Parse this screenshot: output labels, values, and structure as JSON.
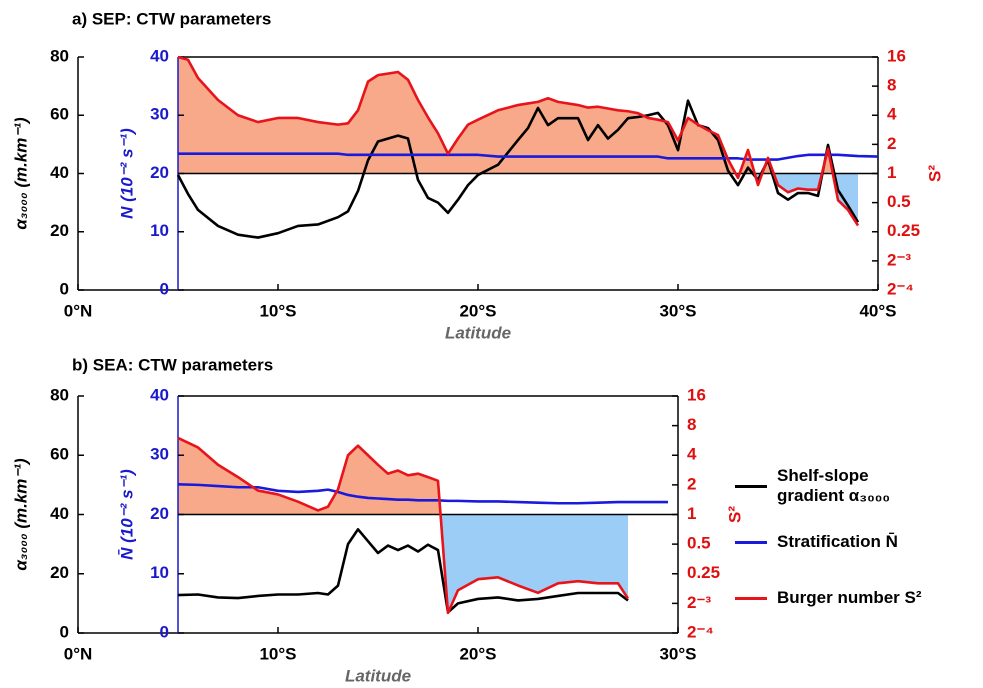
{
  "chart_data": [
    {
      "type": "line",
      "title": "a) SEP: CTW parameters",
      "xlabel": "Latitude",
      "ylabel": "α₃₀₀₀ (m.km⁻¹)",
      "y3label": "N (10⁻² s⁻¹)",
      "y2label": "S²",
      "xlim": [
        0,
        40
      ],
      "xticks": [
        {
          "value": 0,
          "label": "0°N"
        },
        {
          "value": 10,
          "label": "10°S"
        },
        {
          "value": 20,
          "label": "20°S"
        },
        {
          "value": 30,
          "label": "30°S"
        },
        {
          "value": 40,
          "label": "40°S"
        }
      ],
      "ylim": [
        0,
        80
      ],
      "yticks": [
        0,
        20,
        40,
        60,
        80
      ],
      "ycolor": "#000000",
      "y3lim": [
        0,
        40
      ],
      "y3ticks": [
        0,
        10,
        20,
        30,
        40
      ],
      "y3color": "#1a1acc",
      "y2lim": [
        0.0625,
        16
      ],
      "y2log": true,
      "y2ticks": [
        {
          "value": 0.0625,
          "label": "2⁻⁴"
        },
        {
          "value": 0.125,
          "label": "2⁻³"
        },
        0.25,
        0.5,
        1,
        2,
        4,
        8,
        16
      ],
      "y2color": "#e01010",
      "x": [
        5,
        5.5,
        6,
        7,
        8,
        9,
        10,
        11,
        12,
        13,
        13.5,
        14,
        14.5,
        15,
        16,
        16.5,
        17,
        17.5,
        18,
        18.5,
        19,
        19.5,
        20,
        21,
        22,
        22.5,
        23,
        23.5,
        24,
        25,
        25.5,
        26,
        26.5,
        27,
        27.5,
        28,
        28.5,
        29,
        29.5,
        30,
        30.5,
        31,
        31.5,
        32,
        32.5,
        33,
        33.5,
        34,
        34.5,
        35,
        35.5,
        36,
        36.5,
        37,
        37.5,
        38,
        38.5,
        39,
        40
      ],
      "series": [
        {
          "color": "#000000",
          "axis": "y",
          "values": [
            39.5,
            33,
            27.5,
            22,
            19,
            18,
            19.5,
            22,
            22.5,
            25,
            27,
            34,
            44.5,
            51,
            53,
            52,
            37.8,
            31.6,
            30,
            26.5,
            31,
            36,
            39.5,
            43,
            51.5,
            55.6,
            62.5,
            56.6,
            59,
            59,
            51.5,
            56.6,
            52,
            55,
            59,
            59.4,
            60,
            60.8,
            56.6,
            48,
            65,
            56.6,
            55.6,
            51.5,
            41,
            36,
            42,
            37.8,
            44.6,
            33.3,
            31,
            33.3,
            33.3,
            32.3,
            49.8,
            34.3,
            29,
            23.3,
            null
          ]
        },
        {
          "color": "#1a1add",
          "axis": "y3",
          "values": [
            23.4,
            23.4,
            23.4,
            23.4,
            23.4,
            23.4,
            23.4,
            23.4,
            23.4,
            23.4,
            23.2,
            23.2,
            23.2,
            23.2,
            23.2,
            23.2,
            23.2,
            23.2,
            23.2,
            23.2,
            23.2,
            23.2,
            23.2,
            22.9,
            22.9,
            22.9,
            22.9,
            22.9,
            22.9,
            22.9,
            22.9,
            22.9,
            22.9,
            22.9,
            22.9,
            22.9,
            22.9,
            22.9,
            22.6,
            22.6,
            22.6,
            22.6,
            22.6,
            22.6,
            22.6,
            22.6,
            22.4,
            22.4,
            22.4,
            22.4,
            22.7,
            23.0,
            23.2,
            23.2,
            23.2,
            23.2,
            23.1,
            23.0,
            22.9
          ]
        },
        {
          "color": "#e8141c",
          "axis": "y2",
          "fill": {
            "baseline": 1,
            "above": "#f7a98a",
            "below": "#9ccdf6"
          },
          "values": [
            16,
            15,
            9.7,
            5.75,
            4,
            3.4,
            3.75,
            3.75,
            3.4,
            3.2,
            3.3,
            4.5,
            8.9,
            10.4,
            11.2,
            9.3,
            5.75,
            3.8,
            2.6,
            1.6,
            2.3,
            3.2,
            3.6,
            4.5,
            5.1,
            5.3,
            5.5,
            6,
            5.5,
            5.1,
            4.8,
            4.9,
            4.7,
            4.5,
            4.4,
            4.2,
            3.75,
            3.6,
            3.4,
            2.2,
            3.75,
            3.2,
            2.8,
            2.5,
            1.4,
            0.9,
            1.75,
            0.76,
            1.45,
            0.76,
            0.64,
            0.7,
            0.68,
            0.68,
            1.8,
            0.53,
            0.42,
            0.29,
            null
          ]
        }
      ]
    },
    {
      "type": "line",
      "title": "b) SEA: CTW parameters",
      "xlabel": "Latitude",
      "ylabel": "α₃₀₀₀ (m.km⁻¹)",
      "y3label": "N̄ (10⁻² s⁻¹)",
      "y2label": "S²",
      "xlim": [
        0,
        30
      ],
      "xticks": [
        {
          "value": 0,
          "label": "0°N"
        },
        {
          "value": 10,
          "label": "10°S"
        },
        {
          "value": 20,
          "label": "20°S"
        },
        {
          "value": 30,
          "label": "30°S"
        }
      ],
      "ylim": [
        0,
        80
      ],
      "yticks": [
        0,
        20,
        40,
        60,
        80
      ],
      "ycolor": "#000000",
      "y3lim": [
        0,
        40
      ],
      "y3ticks": [
        0,
        10,
        20,
        30,
        40
      ],
      "y3color": "#1a1acc",
      "y2lim": [
        0.0625,
        16
      ],
      "y2log": true,
      "y2ticks": [
        {
          "value": 0.0625,
          "label": "2⁻⁴"
        },
        {
          "value": 0.125,
          "label": "2⁻³"
        },
        0.25,
        0.5,
        1,
        2,
        4,
        8,
        16
      ],
      "y2color": "#e01010",
      "legend": "right",
      "x": [
        5,
        6,
        7,
        8,
        9,
        10,
        11,
        12,
        12.5,
        13,
        13.5,
        14,
        14.5,
        15,
        15.5,
        16,
        16.5,
        17,
        17.5,
        18,
        18.5,
        19,
        20,
        21,
        22,
        23,
        24,
        25,
        26,
        27,
        27.5,
        28,
        29,
        29.5
      ],
      "series": [
        {
          "name": "Shelf-slope gradient α₃₀₀₀",
          "color": "#000000",
          "axis": "y",
          "values": [
            12.8,
            13,
            12,
            11.8,
            12.5,
            13,
            13,
            13.5,
            13,
            16,
            30,
            35,
            31,
            27,
            29.5,
            28,
            29.5,
            27.5,
            29.8,
            28,
            7,
            10,
            11.5,
            12,
            11,
            11.5,
            12.5,
            13.5,
            13.5,
            13.5,
            11,
            null,
            null,
            null
          ]
        },
        {
          "name": "Stratification N̄",
          "color": "#1a1add",
          "axis": "y3",
          "values": [
            25.1,
            25,
            24.8,
            24.6,
            24.6,
            24,
            23.8,
            24,
            24.2,
            23.8,
            23.3,
            23,
            22.8,
            22.7,
            22.6,
            22.5,
            22.5,
            22.4,
            22.4,
            22.4,
            22.3,
            22.3,
            22.2,
            22.2,
            22.1,
            22,
            21.9,
            21.9,
            22,
            22.1,
            22.1,
            22.1,
            22.1,
            22.1
          ]
        },
        {
          "name": "Burger number S²",
          "color": "#e8141c",
          "axis": "y2",
          "fill": {
            "baseline": 1,
            "above": "#f7a98a",
            "below": "#9ccdf6"
          },
          "values": [
            6,
            4.8,
            3.2,
            2.4,
            1.75,
            1.6,
            1.35,
            1.1,
            1.2,
            1.8,
            4,
            5,
            4,
            3.2,
            2.6,
            2.8,
            2.5,
            2.6,
            2.4,
            2.2,
            0.1,
            0.17,
            0.22,
            0.23,
            0.19,
            0.16,
            0.2,
            0.21,
            0.2,
            0.2,
            0.14,
            null,
            null,
            null
          ]
        }
      ]
    }
  ]
}
